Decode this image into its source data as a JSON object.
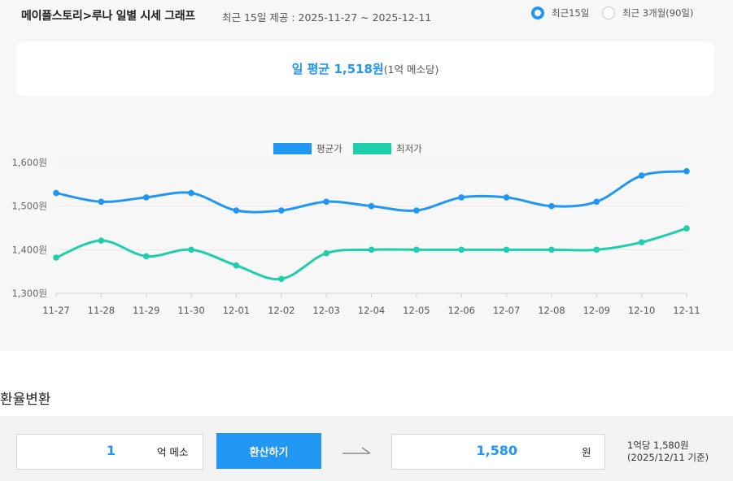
{
  "header": {
    "title": "메이플스토리>루나 일별 시세 그래프",
    "subtitle": "최근 15일 제공 : 2025-11-27 ~ 2025-12-11"
  },
  "range_options": [
    {
      "label": "최근15일",
      "selected": true
    },
    {
      "label": "최근 3개월(90일)",
      "selected": false
    }
  ],
  "average": {
    "text": "일 평균 1,518원",
    "unit": "(1억 메소당)"
  },
  "colors": {
    "accent": "#2196f3",
    "average_series": "#2196f3",
    "min_series": "#1fceab"
  },
  "chart_data": {
    "type": "line",
    "title": "",
    "xlabel": "",
    "ylabel": "",
    "legend": "top-center",
    "grid": true,
    "ylim": [
      1300,
      1600
    ],
    "yticks": [
      1300,
      1400,
      1500,
      1600
    ],
    "ytick_labels": [
      "1,300원",
      "1,400원",
      "1,500원",
      "1,600원"
    ],
    "x": [
      "11-27",
      "11-28",
      "11-29",
      "11-30",
      "12-01",
      "12-02",
      "12-03",
      "12-04",
      "12-05",
      "12-06",
      "12-07",
      "12-08",
      "12-09",
      "12-10",
      "12-11"
    ],
    "series": [
      {
        "name": "평균가",
        "color": "#2196f3",
        "values": [
          1530,
          1510,
          1520,
          1530,
          1490,
          1490,
          1510,
          1500,
          1490,
          1520,
          1520,
          1500,
          1510,
          1570,
          1580
        ]
      },
      {
        "name": "최저가",
        "color": "#1fceab",
        "values": [
          1382,
          1421,
          1385,
          1400,
          1364,
          1333,
          1392,
          1400,
          1400,
          1400,
          1400,
          1400,
          1400,
          1417,
          1449
        ]
      }
    ]
  },
  "exchange": {
    "section_title": "환율변환",
    "amount": "1",
    "amount_unit": "억 메소",
    "button_label": "환산하기",
    "result": "1,580",
    "result_unit": "원",
    "rate_line1": "1억당 1,580원",
    "rate_line2": "(2025/12/11 기준)"
  }
}
